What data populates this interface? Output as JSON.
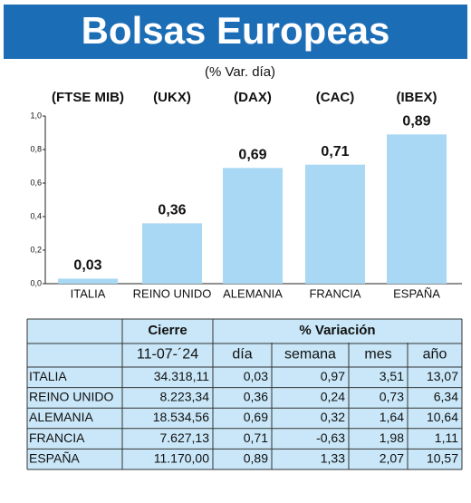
{
  "chart_data": {
    "type": "bar",
    "title": "Bolsas Europeas",
    "subtitle": "(% Var. día)",
    "indices": [
      "(FTSE MIB)",
      "(UKX)",
      "(DAX)",
      "(CAC)",
      "(IBEX)"
    ],
    "categories": [
      "ITALIA",
      "REINO UNIDO",
      "ALEMANIA",
      "FRANCIA",
      "ESPAÑA"
    ],
    "values": [
      0.03,
      0.36,
      0.69,
      0.71,
      0.89
    ],
    "value_labels": [
      "0,03",
      "0,36",
      "0,69",
      "0,71",
      "0,89"
    ],
    "color": "#a8d8f3",
    "ylim": [
      0,
      1
    ],
    "yticks": [
      {
        "value": 0,
        "label": "0,0"
      },
      {
        "value": 0.2,
        "label": "0,2"
      },
      {
        "value": 0.4,
        "label": "0,4"
      },
      {
        "value": 0.6,
        "label": "0,6"
      },
      {
        "value": 0.8,
        "label": "0,8"
      },
      {
        "value": 1,
        "label": "1,0"
      }
    ]
  },
  "table": {
    "group_headers": [
      "Cierre",
      "% Variación"
    ],
    "headers": [
      "11-07-´24",
      "día",
      "semana",
      "mes",
      "año"
    ],
    "rows": [
      [
        "ITALIA",
        "34.318,11",
        "0,03",
        "0,97",
        "3,51",
        "13,07"
      ],
      [
        "REINO UNIDO",
        "8.223,34",
        "0,36",
        "0,24",
        "0,73",
        "6,34"
      ],
      [
        "ALEMANIA",
        "18.534,56",
        "0,69",
        "0,32",
        "1,64",
        "10,64"
      ],
      [
        "FRANCIA",
        "7.627,13",
        "0,71",
        "-0,63",
        "1,98",
        "1,11"
      ],
      [
        "ESPAÑA",
        "11.170,00",
        "0,89",
        "1,33",
        "2,07",
        "10,57"
      ]
    ]
  }
}
